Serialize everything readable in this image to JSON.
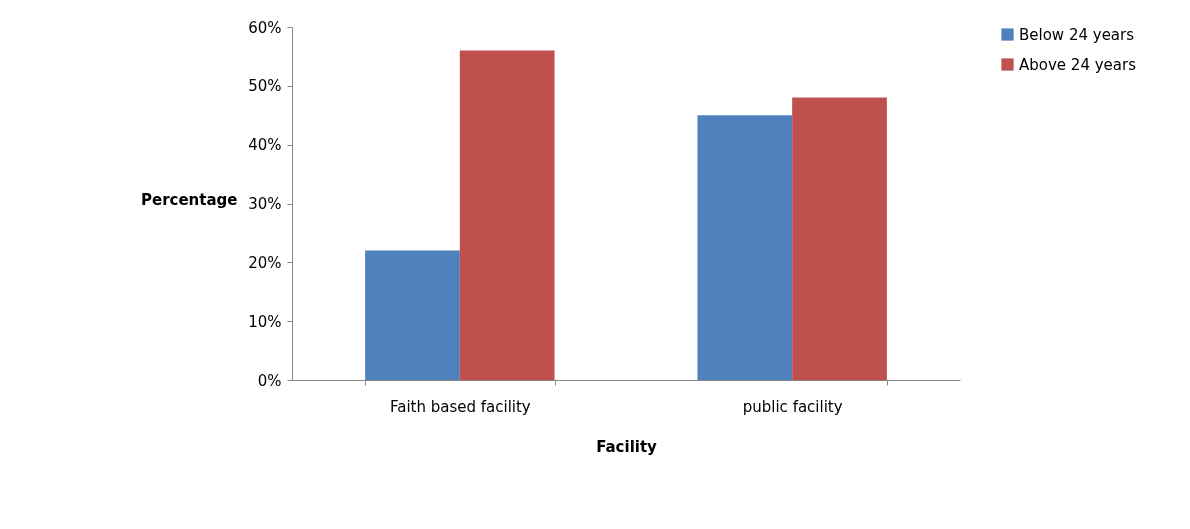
{
  "chart_data": {
    "type": "bar",
    "xlabel": "Facility",
    "ylabel": "Percentage",
    "categories": [
      "Faith based facility",
      "public facility"
    ],
    "series": [
      {
        "name": "Below 24 years",
        "color": "#4f81bd",
        "values": [
          22,
          45
        ]
      },
      {
        "name": "Above 24 years",
        "color": "#c0504d",
        "values": [
          56,
          48
        ]
      }
    ],
    "ylim": [
      0,
      60
    ],
    "yticks": [
      {
        "value": 0,
        "label": "0%"
      },
      {
        "value": 10,
        "label": "10%"
      },
      {
        "value": 20,
        "label": "20%"
      },
      {
        "value": 30,
        "label": "30%"
      },
      {
        "value": 40,
        "label": "40%"
      },
      {
        "value": 50,
        "label": "50%"
      },
      {
        "value": 60,
        "label": "60%"
      }
    ],
    "grid": false,
    "legend": "right"
  }
}
